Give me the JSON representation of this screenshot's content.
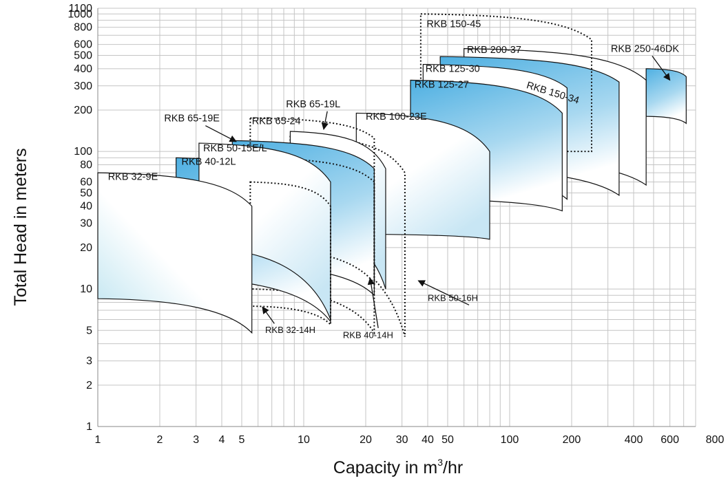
{
  "chart_data": {
    "type": "line",
    "xlabel": "Capacity in m",
    "xlabel_sup": "3",
    "xlabel_suffix": "/hr",
    "ylabel": "Total Head in meters",
    "xscale": "log",
    "yscale": "log",
    "xlim": [
      1,
      800
    ],
    "ylim": [
      1,
      1100
    ],
    "grid": true,
    "xticks": [
      {
        "v": 1,
        "label": "1"
      },
      {
        "v": 2,
        "label": "2"
      },
      {
        "v": 3,
        "label": "3"
      },
      {
        "v": 4,
        "label": "4"
      },
      {
        "v": 5,
        "label": "5"
      },
      {
        "v": 10,
        "label": "10"
      },
      {
        "v": 20,
        "label": "20"
      },
      {
        "v": 30,
        "label": "30"
      },
      {
        "v": 40,
        "label": "40"
      },
      {
        "v": 50,
        "label": "50"
      },
      {
        "v": 100,
        "label": "100"
      },
      {
        "v": 200,
        "label": "200"
      },
      {
        "v": 400,
        "label": "400"
      },
      {
        "v": 600,
        "label": "600"
      },
      {
        "v": 800,
        "label": "800"
      }
    ],
    "yticks": [
      {
        "v": 1,
        "label": "1"
      },
      {
        "v": 2,
        "label": "2"
      },
      {
        "v": 3,
        "label": "3"
      },
      {
        "v": 5,
        "label": "5"
      },
      {
        "v": 10,
        "label": "10"
      },
      {
        "v": 20,
        "label": "20"
      },
      {
        "v": 30,
        "label": "30"
      },
      {
        "v": 40,
        "label": "40"
      },
      {
        "v": 50,
        "label": "50"
      },
      {
        "v": 60,
        "label": "60"
      },
      {
        "v": 80,
        "label": "80"
      },
      {
        "v": 100,
        "label": "100"
      },
      {
        "v": 200,
        "label": "200"
      },
      {
        "v": 300,
        "label": "300"
      },
      {
        "v": 400,
        "label": "400"
      },
      {
        "v": 500,
        "label": "500"
      },
      {
        "v": 600,
        "label": "600"
      },
      {
        "v": 800,
        "label": "800"
      },
      {
        "v": 1000,
        "label": "1000"
      },
      {
        "v": 1100,
        "label": "1100"
      }
    ],
    "series": [
      {
        "name": "RKB 32-9E",
        "style": "white",
        "qmin": 1,
        "qmax": 5.6,
        "hmin_left": 8.5,
        "hmin_right": 4.8,
        "hmax_left": 70,
        "hmax_right": 40
      },
      {
        "name": "RKB 40-12L",
        "style": "blue",
        "qmin": 2.4,
        "qmax": 13.5,
        "hmin_left": 12,
        "hmin_right": 5.8,
        "hmax_left": 90,
        "hmax_right": 40
      },
      {
        "name": "RKB 50-15E/L",
        "style": "light",
        "qmin": 3.1,
        "qmax": 13.5,
        "hmin_left": 20,
        "hmin_right": 6,
        "hmax_left": 115,
        "hmax_right": 60
      },
      {
        "name": "RKB 65-19E",
        "style": "blue",
        "qmin": 4.5,
        "qmax": 22,
        "hmin_left": 15,
        "hmin_right": 9,
        "hmax_left": 120,
        "hmax_right": 75
      },
      {
        "name": "RKB 65-24",
        "style": "dotted",
        "qmin": 5.5,
        "qmax": 22,
        "hmin_left": 20,
        "hmin_right": 11,
        "hmax_left": 175,
        "hmax_right": 125
      },
      {
        "name": "RKB 65-19L",
        "style": "light",
        "qmin": 8.6,
        "qmax": 25,
        "hmin_left": 30,
        "hmin_right": 10,
        "hmax_left": 140,
        "hmax_right": 75
      },
      {
        "name": "RKB 50-16H",
        "style": "dotted",
        "qmin": 8.6,
        "qmax": 31,
        "hmin_left": 20,
        "hmin_right": 4.5,
        "hmax_left": 130,
        "hmax_right": 70
      },
      {
        "name": "RKB 40-14H",
        "style": "dotted",
        "qmin": 5.5,
        "qmax": 22,
        "hmin_left": 10,
        "hmin_right": 4.8,
        "hmax_left": 90,
        "hmax_right": 60
      },
      {
        "name": "RKB 32-14H",
        "style": "dotted",
        "qmin": 5.5,
        "qmax": 13.5,
        "hmin_left": 7.5,
        "hmin_right": 5.5,
        "hmax_left": 60,
        "hmax_right": 40
      },
      {
        "name": "RKB 100-23E",
        "style": "light",
        "qmin": 18,
        "qmax": 80,
        "hmin_left": 25,
        "hmin_right": 23,
        "hmax_left": 190,
        "hmax_right": 100
      },
      {
        "name": "RKB 125-27",
        "style": "blue",
        "qmin": 33,
        "qmax": 180,
        "hmin_left": 45,
        "hmin_right": 37,
        "hmax_left": 330,
        "hmax_right": 190
      },
      {
        "name": "RKB 125-30",
        "style": "white",
        "qmin": 38,
        "qmax": 190,
        "hmin_left": 70,
        "hmin_right": 45,
        "hmax_left": 430,
        "hmax_right": 290
      },
      {
        "name": "RKB 150-34",
        "style": "blue",
        "qmin": 46,
        "qmax": 340,
        "hmin_left": 75,
        "hmin_right": 48,
        "hmax_left": 490,
        "hmax_right": 320
      },
      {
        "name": "RKB 200-37",
        "style": "white",
        "qmin": 60,
        "qmax": 460,
        "hmin_left": 90,
        "hmin_right": 57,
        "hmax_left": 560,
        "hmax_right": 330
      },
      {
        "name": "RKB 150-45",
        "style": "dotted",
        "qmin": 37,
        "qmax": 250,
        "hmin_left": 100,
        "hmin_right": 100,
        "hmax_left": 1000,
        "hmax_right": 650
      },
      {
        "name": "RKB 250-46DK",
        "style": "blue",
        "qmin": 460,
        "qmax": 720,
        "hmin_left": 180,
        "hmin_right": 160,
        "hmax_left": 400,
        "hmax_right": 350
      }
    ]
  }
}
